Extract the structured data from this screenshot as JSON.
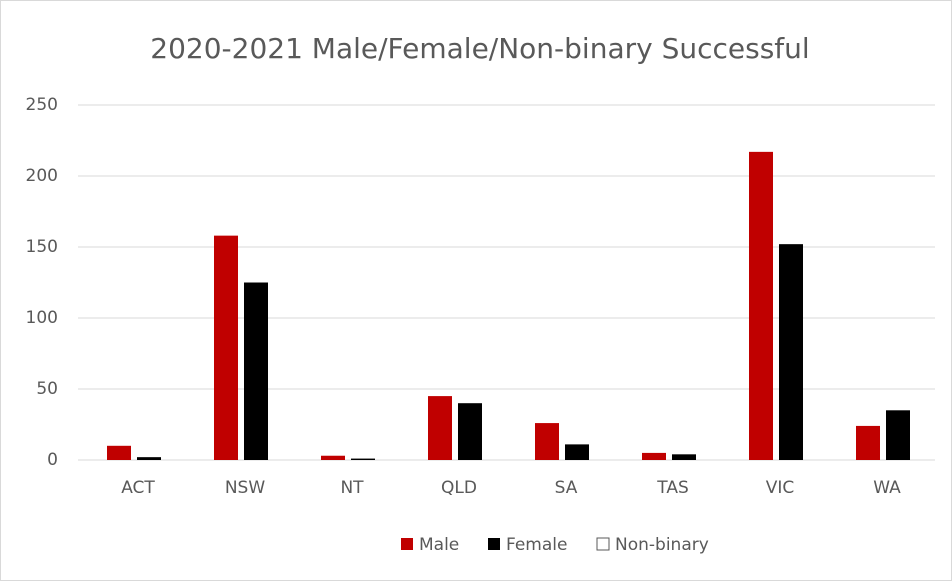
{
  "chart_data": {
    "type": "bar",
    "title": "2020-2021 Male/Female/Non-binary Successful",
    "categories": [
      "ACT",
      "NSW",
      "NT",
      "QLD",
      "SA",
      "TAS",
      "VIC",
      "WA"
    ],
    "series": [
      {
        "name": "Male",
        "color": "#c00000",
        "values": [
          10,
          158,
          3,
          45,
          26,
          5,
          217,
          24
        ]
      },
      {
        "name": "Female",
        "color": "#000000",
        "values": [
          2,
          125,
          1,
          40,
          11,
          4,
          152,
          35
        ]
      },
      {
        "name": "Non-binary",
        "color": "#ffffff",
        "values": [
          0,
          0,
          0,
          0,
          0,
          0,
          0,
          0
        ]
      }
    ],
    "ylim": [
      0,
      250
    ],
    "yticks": [
      0,
      50,
      100,
      150,
      200,
      250
    ],
    "grid": true,
    "legend": "bottom"
  }
}
